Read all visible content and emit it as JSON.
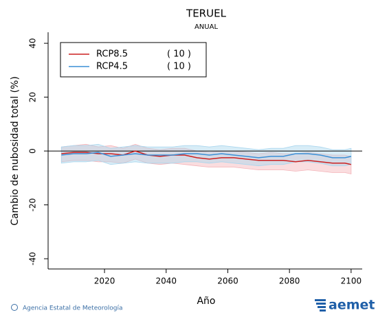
{
  "chart_data": {
    "type": "line",
    "title": "TERUEL",
    "subtitle": "ANUAL",
    "y_label": "Cambio de nubosidad total (%)",
    "x_label": "Año",
    "x": [
      2006,
      2010,
      2014,
      2018,
      2022,
      2026,
      2030,
      2034,
      2038,
      2042,
      2046,
      2050,
      2054,
      2058,
      2062,
      2066,
      2070,
      2074,
      2078,
      2082,
      2086,
      2090,
      2094,
      2098,
      2100
    ],
    "series": [
      {
        "name": "RCP8.5",
        "count_label": "( 10 )",
        "color": "#cc1f1f",
        "band_color": "#f3b3b8",
        "values": [
          -1,
          -0.5,
          -0.5,
          -1,
          -1,
          -1.5,
          0,
          -1.5,
          -2,
          -1.5,
          -1.5,
          -2.5,
          -3,
          -2.5,
          -2.5,
          -3,
          -3.5,
          -3.5,
          -3.5,
          -4,
          -3.5,
          -4,
          -4.5,
          -4.5,
          -5
        ],
        "lower": [
          -4,
          -3.5,
          -3.5,
          -4,
          -4,
          -4.5,
          -3,
          -4.5,
          -5,
          -4.5,
          -5,
          -5.5,
          -6,
          -6,
          -6,
          -6.5,
          -7,
          -7,
          -7,
          -7.5,
          -7,
          -7.5,
          -8,
          -8,
          -8.5
        ],
        "upper": [
          1.5,
          2,
          2.5,
          1.5,
          2,
          1,
          2.5,
          1,
          0.5,
          1,
          1,
          0,
          -0.5,
          0,
          0,
          -0.5,
          -1,
          -0.5,
          -1,
          -1,
          -0.5,
          -1,
          -1.5,
          -1.5,
          -2
        ]
      },
      {
        "name": "RCP4.5",
        "count_label": "( 10 )",
        "color": "#3a8fd6",
        "band_color": "#a9d6ee",
        "values": [
          -1.5,
          -1,
          -1,
          -0.5,
          -2,
          -1.5,
          -1,
          -1.5,
          -1.5,
          -1.5,
          -1,
          -1,
          -1.5,
          -1,
          -1.5,
          -2,
          -2.5,
          -2,
          -2,
          -1,
          -1,
          -1.5,
          -2.5,
          -2.5,
          -2
        ],
        "lower": [
          -4.5,
          -4,
          -4,
          -3.5,
          -5,
          -4.5,
          -4,
          -4.5,
          -4.5,
          -4.5,
          -4,
          -4,
          -4.5,
          -4,
          -4.5,
          -5,
          -5.5,
          -5,
          -5,
          -4,
          -4,
          -4.5,
          -5.5,
          -5.5,
          -5
        ],
        "upper": [
          1.5,
          2,
          2,
          2.5,
          1,
          1.5,
          2,
          1.5,
          1.5,
          1.5,
          2,
          2,
          1.5,
          2,
          1.5,
          1,
          0.5,
          1,
          1,
          2,
          2,
          1.5,
          0.5,
          0.5,
          1
        ]
      }
    ],
    "xlim": [
      2001.7,
      2103.6
    ],
    "xticks": [
      2020,
      2040,
      2060,
      2080,
      2100
    ],
    "ylim": [
      -43.8,
      44.1
    ],
    "yticks": [
      -40,
      -20,
      0,
      20,
      40
    ],
    "reference_line": 0,
    "legend_position": "upper left"
  },
  "footer": {
    "credit": "Agencia Estatal de Meteorología",
    "logo": "aemet"
  }
}
